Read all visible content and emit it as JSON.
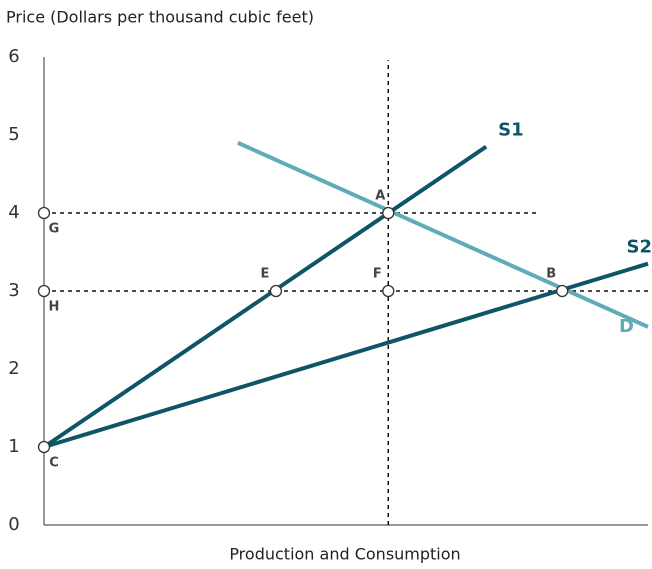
{
  "chart_data": {
    "type": "line",
    "ylabel": "Price (Dollars per thousand cubic feet)",
    "xlabel": "Production and Consumption",
    "xlim": [
      0,
      10
    ],
    "ylim": [
      0,
      6
    ],
    "yticks": [
      0,
      1,
      2,
      3,
      4,
      5,
      6
    ],
    "grid": false,
    "series": [
      {
        "name": "D",
        "color": "#5fabb8",
        "x": [
          3.21,
          10
        ],
        "values": [
          4.9,
          2.54
        ]
      },
      {
        "name": "S1",
        "color": "#0f5568",
        "x": [
          0,
          7.32
        ],
        "values": [
          1,
          4.85
        ]
      },
      {
        "name": "S2",
        "color": "#0f5568",
        "x": [
          0,
          10
        ],
        "values": [
          1,
          3.35
        ]
      }
    ],
    "guides": [
      {
        "x": [
          5.7,
          5.7
        ],
        "y": [
          0,
          5.96
        ]
      },
      {
        "x": [
          0,
          8.21
        ],
        "y": [
          4,
          4
        ]
      },
      {
        "x": [
          0,
          10
        ],
        "y": [
          3,
          3
        ]
      }
    ],
    "points": [
      {
        "label": "A",
        "x": 5.7,
        "y": 4
      },
      {
        "label": "E",
        "x": 3.84,
        "y": 3
      },
      {
        "label": "F",
        "x": 5.7,
        "y": 3
      },
      {
        "label": "B",
        "x": 8.58,
        "y": 3
      },
      {
        "label": "G",
        "x": 0,
        "y": 4
      },
      {
        "label": "H",
        "x": 0,
        "y": 3
      },
      {
        "label": "C",
        "x": 0,
        "y": 1
      }
    ]
  }
}
